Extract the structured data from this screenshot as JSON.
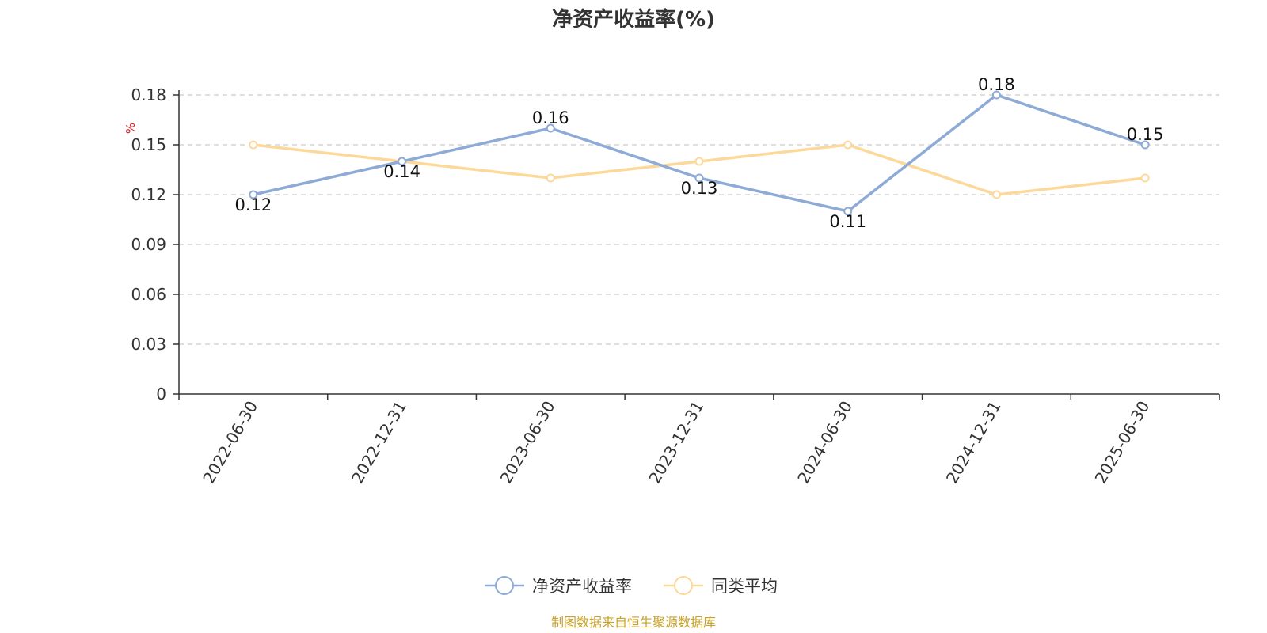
{
  "chart_data": {
    "type": "line",
    "title": "净资产收益率(%)",
    "ylabel": "%",
    "xlabel": "",
    "categories": [
      "2022-06-30",
      "2022-12-31",
      "2023-06-30",
      "2023-12-31",
      "2024-06-30",
      "2024-12-31",
      "2025-06-30"
    ],
    "ylim": [
      0,
      0.18
    ],
    "yticks": [
      "0",
      "0.03",
      "0.06",
      "0.09",
      "0.12",
      "0.15",
      "0.18"
    ],
    "grid": true,
    "legend_position": "bottom-center",
    "series": [
      {
        "name": "净资产收益率",
        "values": [
          0.12,
          0.14,
          0.16,
          0.13,
          0.11,
          0.18,
          0.15
        ],
        "labels": [
          "0.12",
          "0.14",
          "0.16",
          "0.13",
          "0.11",
          "0.18",
          "0.15"
        ],
        "color": "#8eaad6"
      },
      {
        "name": "同类平均",
        "values": [
          0.15,
          0.14,
          0.13,
          0.14,
          0.15,
          0.12,
          0.13
        ],
        "color": "#fcd99a"
      }
    ],
    "source": "制图数据来自恒生聚源数据库"
  }
}
